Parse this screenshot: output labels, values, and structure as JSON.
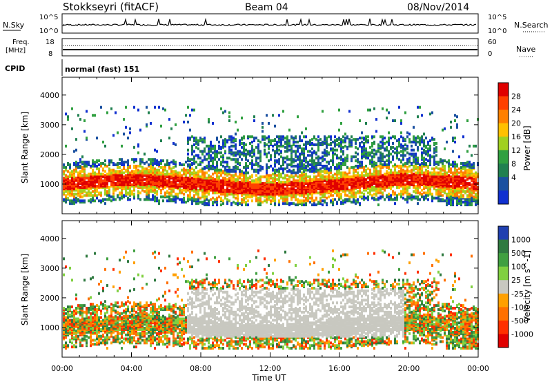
{
  "header": {
    "station": "Stokkseyri (fitACF)",
    "beam": "Beam 04",
    "date": "08/Nov/2014"
  },
  "top_panels": {
    "nsky_label": "N.Sky",
    "nsky_ticks": [
      "10^5",
      "10^0"
    ],
    "nsearch_label": "N.Search",
    "nsearch_ticks": [
      "10^5",
      "10^0"
    ],
    "freq_label": "Freq.",
    "freq_unit": "[MHz]",
    "freq_ticks": [
      "18",
      "8"
    ],
    "nave_label": "Nave",
    "nave_ticks": [
      "60",
      "0"
    ],
    "cpid_label": "CPID",
    "cpid_value": "normal (fast) 151"
  },
  "chart_data": [
    {
      "type": "heatmap",
      "name": "power",
      "ylabel": "Slant Range [km]",
      "xlabel": "Time UT",
      "y_ticks": [
        "4000",
        "3000",
        "2000",
        "1000"
      ],
      "x_ticks": [
        "00:00",
        "04:00",
        "08:00",
        "12:00",
        "16:00",
        "20:00",
        "00:00"
      ],
      "colorbar": {
        "label": "Power [dB]",
        "ticks": [
          "28",
          "24",
          "20",
          "16",
          "12",
          "8",
          "4"
        ],
        "colors": [
          "#e00000",
          "#ff4000",
          "#ff8000",
          "#ffc000",
          "#a0d020",
          "#30a040",
          "#208050",
          "#1a50a0",
          "#1030d0"
        ]
      }
    },
    {
      "type": "heatmap",
      "name": "velocity",
      "ylabel": "Slant Range [km]",
      "xlabel": "Time UT",
      "y_ticks": [
        "4000",
        "3000",
        "2000",
        "1000"
      ],
      "x_ticks": [
        "00:00",
        "04:00",
        "08:00",
        "12:00",
        "16:00",
        "20:00",
        "00:00"
      ],
      "colorbar": {
        "label": "Velocity [m s^-1]",
        "ticks": [
          "1000",
          "500",
          "100",
          "25",
          "-25",
          "-100",
          "-500",
          "-1000"
        ],
        "colors": [
          "#2040b0",
          "#2f7a40",
          "#40a040",
          "#80d040",
          "#c8c8c0",
          "#ffa000",
          "#ff7000",
          "#ff3000",
          "#e00000"
        ]
      }
    }
  ],
  "colors": {
    "ground": "#c8c8c0",
    "axis": "#000000"
  }
}
